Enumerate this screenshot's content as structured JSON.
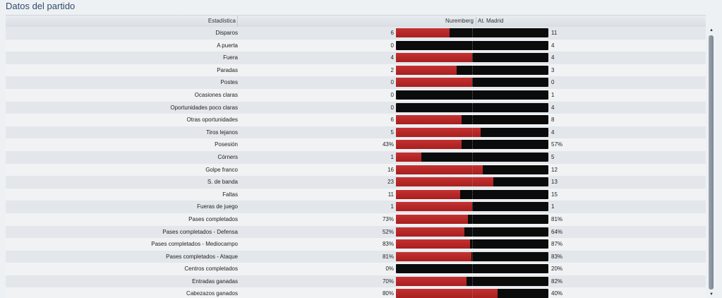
{
  "page": {
    "title": "Datos del partido"
  },
  "header": {
    "stat_col": "Estadística",
    "home_team": "Nuremberg",
    "away_team": "At. Madrid"
  },
  "colors": {
    "home": "#b82828",
    "away": "#0b0b0b",
    "title": "#2f4a6b"
  },
  "icons": {
    "scroll_up": "scroll-up-arrow-icon",
    "scroll_down": "scroll-down-arrow-icon"
  },
  "rows": [
    {
      "label": "Disparos",
      "home": "6",
      "away": "11",
      "home_share": 0.353
    },
    {
      "label": "A puerta",
      "home": "0",
      "away": "4",
      "home_share": 0.0
    },
    {
      "label": "Fuera",
      "home": "4",
      "away": "4",
      "home_share": 0.5
    },
    {
      "label": "Paradas",
      "home": "2",
      "away": "3",
      "home_share": 0.4
    },
    {
      "label": "Postes",
      "home": "0",
      "away": "0",
      "home_share": 0.5
    },
    {
      "label": "Ocasiones claras",
      "home": "0",
      "away": "1",
      "home_share": 0.0
    },
    {
      "label": "Oportunidades poco claras",
      "home": "0",
      "away": "4",
      "home_share": 0.0
    },
    {
      "label": "Otras oportunidades",
      "home": "6",
      "away": "8",
      "home_share": 0.429
    },
    {
      "label": "Tiros lejanos",
      "home": "5",
      "away": "4",
      "home_share": 0.556
    },
    {
      "label": "Posesión",
      "home": "43%",
      "away": "57%",
      "home_share": 0.43
    },
    {
      "label": "Córners",
      "home": "1",
      "away": "5",
      "home_share": 0.167
    },
    {
      "label": "Golpe franco",
      "home": "16",
      "away": "12",
      "home_share": 0.571
    },
    {
      "label": "S. de banda",
      "home": "23",
      "away": "13",
      "home_share": 0.639
    },
    {
      "label": "Faltas",
      "home": "11",
      "away": "15",
      "home_share": 0.423
    },
    {
      "label": "Fueras de juego",
      "home": "1",
      "away": "1",
      "home_share": 0.5
    },
    {
      "label": "Pases completados",
      "home": "73%",
      "away": "81%",
      "home_share": 0.474
    },
    {
      "label": "Pases completados - Defensa",
      "home": "52%",
      "away": "64%",
      "home_share": 0.448
    },
    {
      "label": "Pases completados - Mediocampo",
      "home": "83%",
      "away": "87%",
      "home_share": 0.488
    },
    {
      "label": "Pases completados - Ataque",
      "home": "81%",
      "away": "83%",
      "home_share": 0.494
    },
    {
      "label": "Centros completados",
      "home": "0%",
      "away": "20%",
      "home_share": 0.0
    },
    {
      "label": "Entradas ganadas",
      "home": "70%",
      "away": "82%",
      "home_share": 0.461
    },
    {
      "label": "Cabezazos ganados",
      "home": "80%",
      "away": "40%",
      "home_share": 0.667
    }
  ]
}
